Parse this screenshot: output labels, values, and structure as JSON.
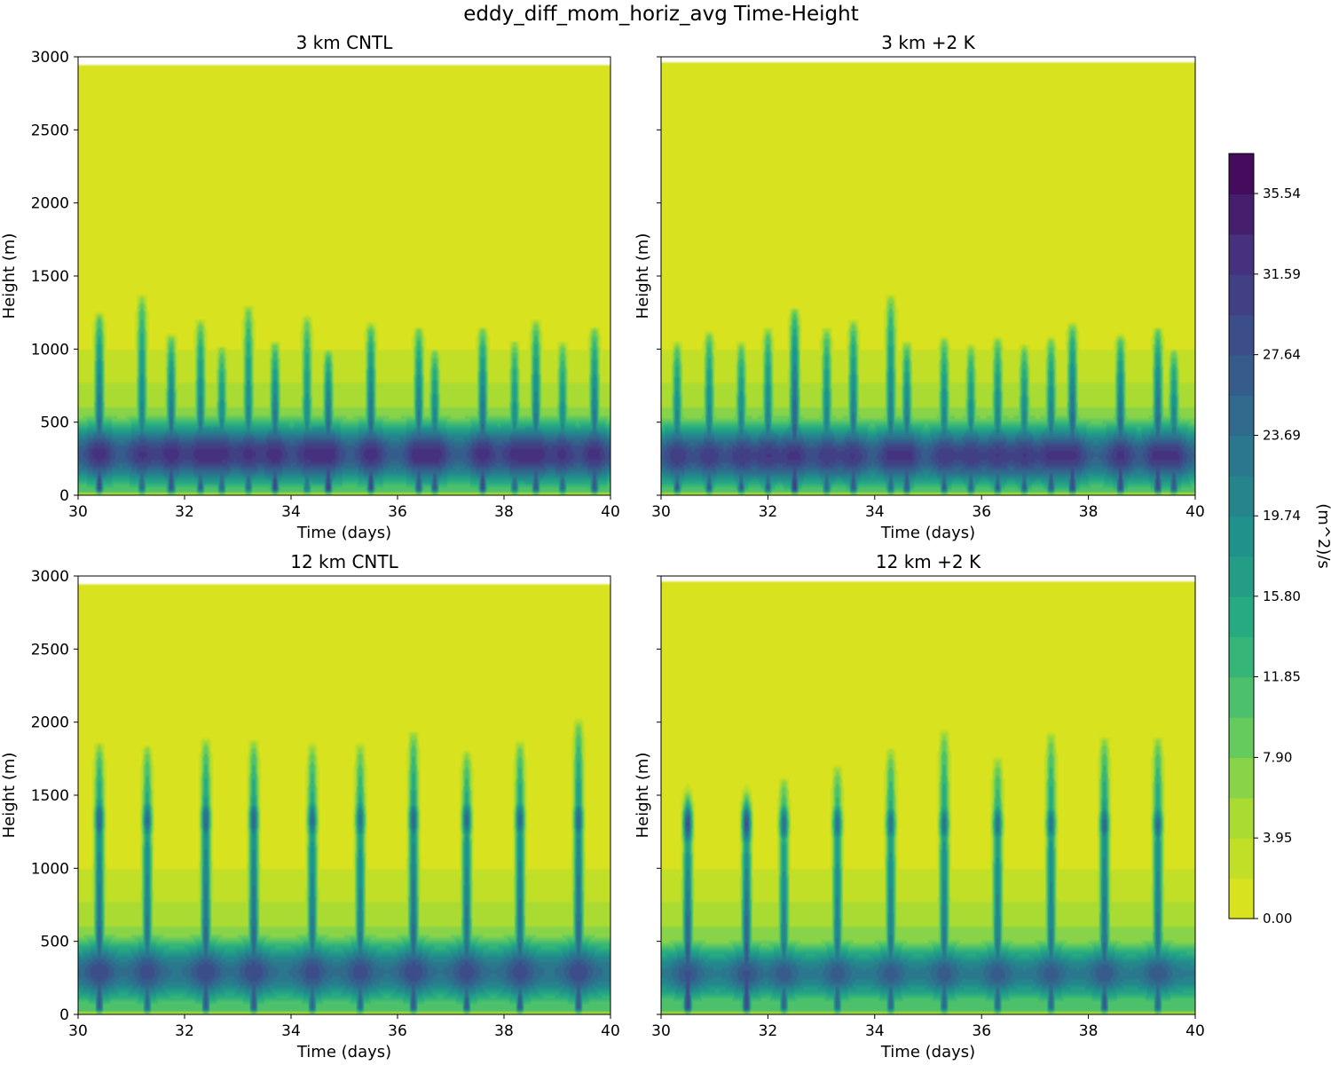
{
  "figure": {
    "title": "eddy_diff_mom_horiz_avg Time-Height"
  },
  "colormap": {
    "name": "viridis_r",
    "stops": [
      "#440154",
      "#472f7d",
      "#3b528b",
      "#2c728e",
      "#21918c",
      "#28ae80",
      "#5ec962",
      "#addc30",
      "#e5e419"
    ]
  },
  "colorbar": {
    "label": "(m^2)/s",
    "min": 0.0,
    "max": 37.5,
    "n_levels": 19,
    "ticks": [
      0.0,
      3.95,
      7.9,
      11.85,
      15.8,
      19.74,
      23.69,
      27.64,
      31.59,
      35.54
    ],
    "tick_labels": [
      "0.00",
      "3.95",
      "7.90",
      "11.85",
      "15.80",
      "19.74",
      "23.69",
      "27.64",
      "31.59",
      "35.54"
    ]
  },
  "chart_data": [
    {
      "type": "heatmap",
      "title": "3 km CNTL",
      "xlabel": "Time (days)",
      "ylabel": "Height (m)",
      "xlim": [
        30,
        40
      ],
      "ylim": [
        0,
        3000
      ],
      "data_top": 2950,
      "xticks": [
        30,
        32,
        34,
        36,
        38,
        40
      ],
      "yticks": [
        0,
        500,
        1000,
        1500,
        2000,
        2500,
        3000
      ],
      "core_height": 280,
      "core_depth": 600,
      "core_strength": 33,
      "secondary_height": 0,
      "pulses": [
        {
          "t": 30.4,
          "top": 1250,
          "strength": 35
        },
        {
          "t": 31.2,
          "top": 1370,
          "strength": 30
        },
        {
          "t": 31.75,
          "top": 1100,
          "strength": 35
        },
        {
          "t": 32.3,
          "top": 1200,
          "strength": 32
        },
        {
          "t": 32.7,
          "top": 1020,
          "strength": 31
        },
        {
          "t": 33.2,
          "top": 1300,
          "strength": 30
        },
        {
          "t": 33.7,
          "top": 1050,
          "strength": 35
        },
        {
          "t": 34.3,
          "top": 1230,
          "strength": 29
        },
        {
          "t": 34.7,
          "top": 1000,
          "strength": 37
        },
        {
          "t": 35.5,
          "top": 1180,
          "strength": 35
        },
        {
          "t": 36.4,
          "top": 1150,
          "strength": 34
        },
        {
          "t": 36.7,
          "top": 1000,
          "strength": 33
        },
        {
          "t": 37.6,
          "top": 1150,
          "strength": 35
        },
        {
          "t": 38.2,
          "top": 1060,
          "strength": 30
        },
        {
          "t": 38.6,
          "top": 1200,
          "strength": 33
        },
        {
          "t": 39.1,
          "top": 1050,
          "strength": 30
        },
        {
          "t": 39.7,
          "top": 1150,
          "strength": 34
        }
      ]
    },
    {
      "type": "heatmap",
      "title": "3 km +2 K",
      "xlabel": "Time (days)",
      "ylabel": "Height (m)",
      "xlim": [
        30,
        40
      ],
      "ylim": [
        0,
        3000
      ],
      "data_top": 2970,
      "xticks": [
        30,
        32,
        34,
        36,
        38,
        40
      ],
      "yticks": [
        0,
        500,
        1000,
        1500,
        2000,
        2500,
        3000
      ],
      "core_height": 270,
      "core_depth": 600,
      "core_strength": 32,
      "secondary_height": 0,
      "pulses": [
        {
          "t": 30.3,
          "top": 1050,
          "strength": 32
        },
        {
          "t": 30.9,
          "top": 1120,
          "strength": 32
        },
        {
          "t": 31.5,
          "top": 1050,
          "strength": 32
        },
        {
          "t": 32.0,
          "top": 1150,
          "strength": 32
        },
        {
          "t": 32.5,
          "top": 1280,
          "strength": 37
        },
        {
          "t": 33.1,
          "top": 1150,
          "strength": 31
        },
        {
          "t": 33.6,
          "top": 1200,
          "strength": 33
        },
        {
          "t": 34.3,
          "top": 1370,
          "strength": 31
        },
        {
          "t": 34.6,
          "top": 1050,
          "strength": 34
        },
        {
          "t": 35.3,
          "top": 1080,
          "strength": 32
        },
        {
          "t": 35.8,
          "top": 1030,
          "strength": 31
        },
        {
          "t": 36.3,
          "top": 1080,
          "strength": 32
        },
        {
          "t": 36.8,
          "top": 1030,
          "strength": 32
        },
        {
          "t": 37.3,
          "top": 1080,
          "strength": 33
        },
        {
          "t": 37.7,
          "top": 1180,
          "strength": 36
        },
        {
          "t": 38.6,
          "top": 1100,
          "strength": 36
        },
        {
          "t": 39.3,
          "top": 1150,
          "strength": 36
        },
        {
          "t": 39.6,
          "top": 1000,
          "strength": 33
        }
      ]
    },
    {
      "type": "heatmap",
      "title": "12 km CNTL",
      "xlabel": "Time (days)",
      "ylabel": "Height (m)",
      "xlim": [
        30,
        40
      ],
      "ylim": [
        0,
        3000
      ],
      "data_top": 2950,
      "xticks": [
        30,
        32,
        34,
        36,
        38,
        40
      ],
      "yticks": [
        0,
        500,
        1000,
        1500,
        2000,
        2500,
        3000
      ],
      "core_height": 290,
      "core_depth": 600,
      "core_strength": 30,
      "secondary_height": 1330,
      "pulses": [
        {
          "t": 30.4,
          "top": 1860,
          "strength": 33
        },
        {
          "t": 31.3,
          "top": 1840,
          "strength": 31
        },
        {
          "t": 32.4,
          "top": 1890,
          "strength": 33
        },
        {
          "t": 33.3,
          "top": 1880,
          "strength": 33
        },
        {
          "t": 34.4,
          "top": 1850,
          "strength": 31
        },
        {
          "t": 35.3,
          "top": 1850,
          "strength": 30
        },
        {
          "t": 36.3,
          "top": 1940,
          "strength": 33
        },
        {
          "t": 37.3,
          "top": 1800,
          "strength": 32
        },
        {
          "t": 38.3,
          "top": 1870,
          "strength": 32
        },
        {
          "t": 39.4,
          "top": 2020,
          "strength": 33
        }
      ]
    },
    {
      "type": "heatmap",
      "title": "12 km +2 K",
      "xlabel": "Time (days)",
      "ylabel": "Height (m)",
      "xlim": [
        30,
        40
      ],
      "ylim": [
        0,
        3000
      ],
      "data_top": 2970,
      "xticks": [
        30,
        32,
        34,
        36,
        38,
        40
      ],
      "yticks": [
        0,
        500,
        1000,
        1500,
        2000,
        2500,
        3000
      ],
      "core_height": 280,
      "core_depth": 550,
      "core_strength": 28,
      "secondary_height": 1300,
      "pulses": [
        {
          "t": 30.5,
          "top": 1450,
          "strength": 36
        },
        {
          "t": 31.6,
          "top": 1450,
          "strength": 36
        },
        {
          "t": 32.3,
          "top": 1620,
          "strength": 30
        },
        {
          "t": 33.3,
          "top": 1700,
          "strength": 30
        },
        {
          "t": 34.3,
          "top": 1820,
          "strength": 30
        },
        {
          "t": 35.3,
          "top": 1950,
          "strength": 30
        },
        {
          "t": 36.3,
          "top": 1760,
          "strength": 30
        },
        {
          "t": 37.3,
          "top": 1930,
          "strength": 30
        },
        {
          "t": 38.3,
          "top": 1900,
          "strength": 32
        },
        {
          "t": 39.3,
          "top": 1900,
          "strength": 31
        }
      ]
    }
  ]
}
